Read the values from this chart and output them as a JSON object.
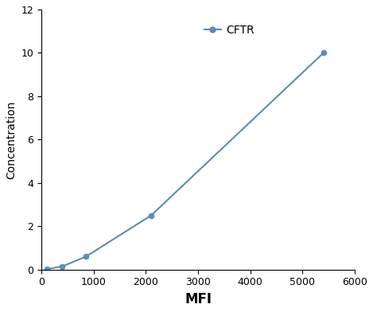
{
  "x": [
    100,
    400,
    850,
    2100,
    5400
  ],
  "y": [
    0.02,
    0.15,
    0.6,
    2.5,
    10.0
  ],
  "line_color": "#5b8db8",
  "marker_color": "#5b8db8",
  "marker_style": "o",
  "marker_size": 5,
  "line_width": 1.5,
  "legend_label": "CFTR",
  "xlabel": "MFI",
  "ylabel": "Concentration",
  "xlim": [
    0,
    6000
  ],
  "ylim": [
    0,
    12
  ],
  "xticks": [
    0,
    1000,
    2000,
    3000,
    4000,
    5000,
    6000
  ],
  "yticks": [
    0,
    2,
    4,
    6,
    8,
    10,
    12
  ],
  "xlabel_fontsize": 12,
  "ylabel_fontsize": 10,
  "tick_fontsize": 9,
  "legend_fontsize": 10,
  "background_color": "#ffffff",
  "grid": false
}
